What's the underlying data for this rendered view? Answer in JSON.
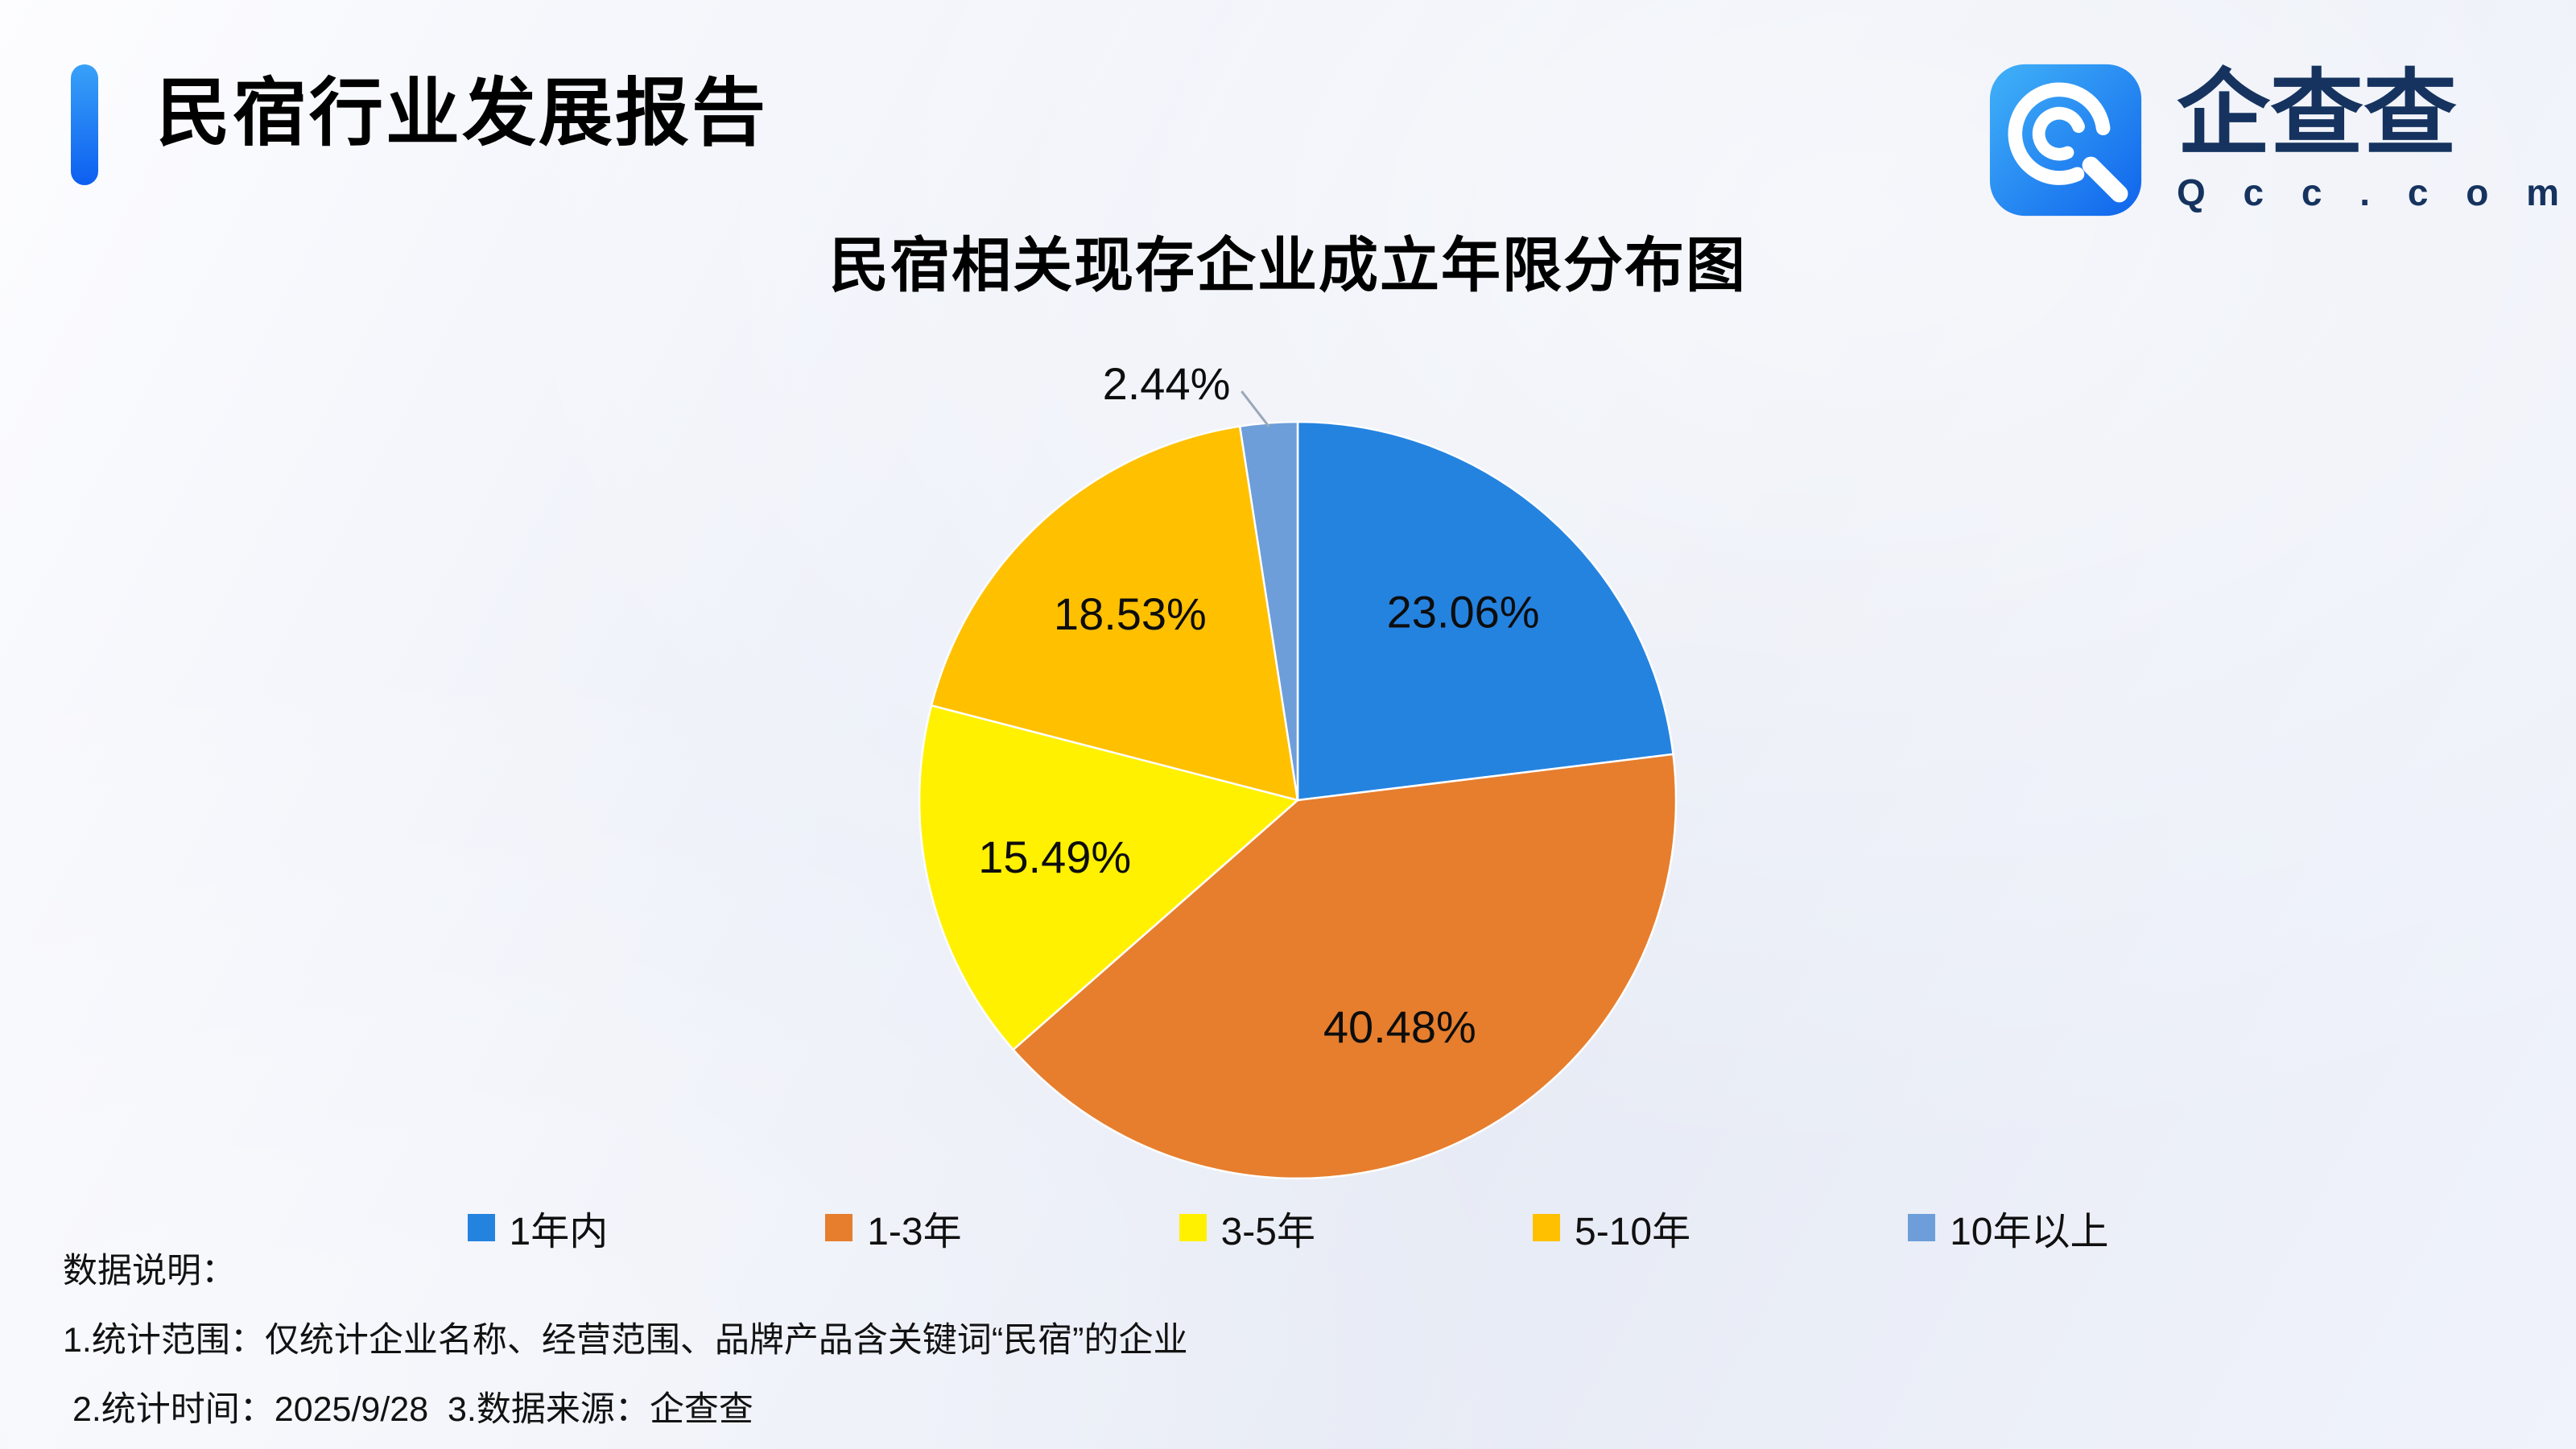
{
  "header": {
    "title": "民宿行业发展报告",
    "logo": {
      "name": "企查查",
      "domain": "Q c c . c o m",
      "icon_color": "#1f7cf0",
      "text_color": "#16335f"
    },
    "accent_color": "#1673f2"
  },
  "chart_data": {
    "type": "pie",
    "title": "民宿相关现存企业成立年限分布图",
    "unit": "%",
    "start_angle": "12-o-clock",
    "direction": "clockwise",
    "legend_position": "bottom",
    "slices": [
      {
        "label": "1年内",
        "value": 23.06,
        "display": "23.06%",
        "color": "#2583e0"
      },
      {
        "label": "1-3年",
        "value": 40.48,
        "display": "40.48%",
        "color": "#e67e2e"
      },
      {
        "label": "3-5年",
        "value": 15.49,
        "display": "15.49%",
        "color": "#fff100"
      },
      {
        "label": "5-10年",
        "value": 18.53,
        "display": "18.53%",
        "color": "#ffc000"
      },
      {
        "label": "10年以上",
        "value": 2.44,
        "display": "2.44%",
        "color": "#6d9eda"
      }
    ]
  },
  "notes": {
    "heading": "数据说明：",
    "line1": "1.统计范围：仅统计企业名称、经营范围、品牌产品含关键词“民宿”的企业",
    "line2": " 2.统计时间：2025/9/28  3.数据来源：企查查"
  }
}
